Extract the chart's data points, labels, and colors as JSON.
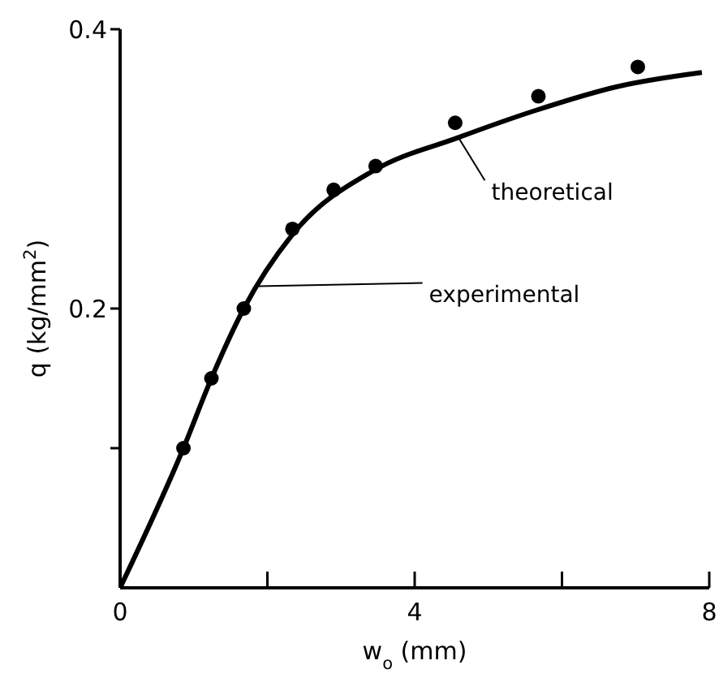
{
  "chart_data": {
    "type": "scatter",
    "xlabel": "w$_{o}$ (mm)",
    "ylabel": "q (kg/mm$^{2}$)",
    "xlim": [
      0,
      8
    ],
    "xticks": [
      0,
      {
        "value": 2,
        "label": null
      },
      4,
      {
        "value": 6,
        "label": null
      },
      8
    ],
    "ylim": [
      0,
      0.4
    ],
    "yticks": [
      {
        "value": 0.1,
        "label": null
      },
      0.2,
      0.4
    ],
    "grid": false,
    "series": [
      {
        "color": "#000000",
        "marker": "circle",
        "x": [
          0.86,
          1.24,
          1.68,
          2.34,
          2.9,
          3.47,
          4.55,
          5.68,
          7.03
        ],
        "values": [
          0.1,
          0.15,
          0.2,
          0.257,
          0.285,
          0.302,
          0.333,
          0.352,
          0.373
        ]
      },
      {
        "type": "line",
        "color": "#000000",
        "marker": "none",
        "line_style": "solid",
        "x": [
          0,
          0.86,
          1.24,
          1.68,
          2.34,
          3.45,
          4.57,
          5.65,
          6.76,
          7.9
        ],
        "values": [
          0,
          0.1,
          0.15,
          0.2,
          0.253,
          0.299,
          0.322,
          0.342,
          0.359,
          0.369
        ]
      }
    ],
    "annotations": [
      {
        "text": "theoretical",
        "x": 4.6,
        "y": 0.322
      },
      {
        "text": "experimental",
        "x": 1.88,
        "y": 0.216
      }
    ]
  }
}
